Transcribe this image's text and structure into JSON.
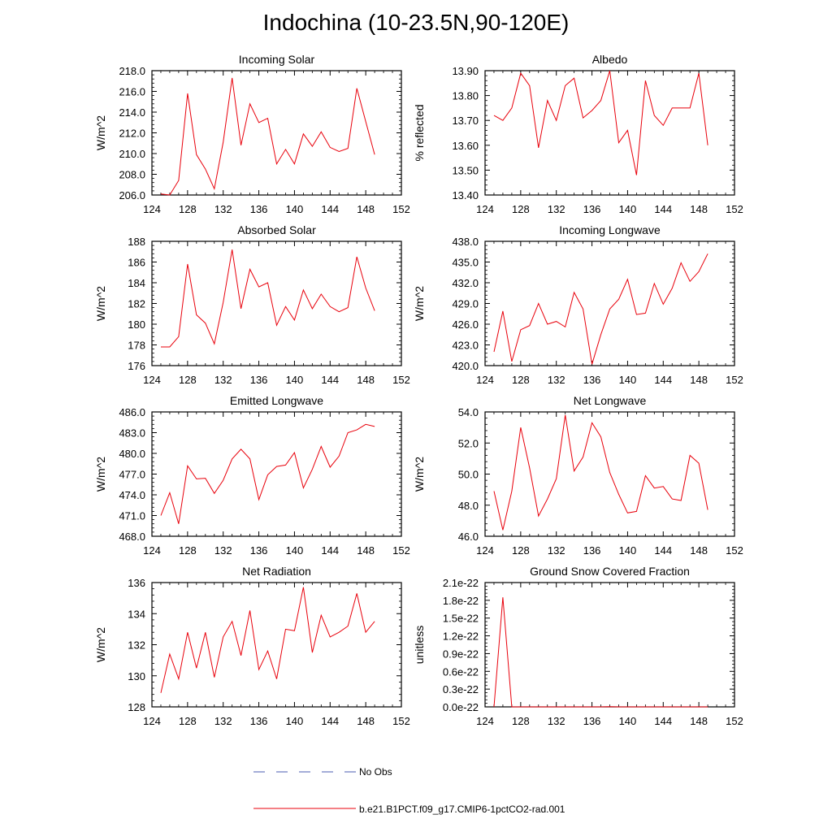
{
  "title": "Indochina (10-23.5N,90-120E)",
  "legend": {
    "no_obs_label": "No Obs",
    "model_label": "b.e21.B1PCT.f09_g17.CMIP6-1pctCO2-rad.001",
    "no_obs_color": "#4a5bb0",
    "model_color": "#e8000b"
  },
  "colors": {
    "line": "#e8000b",
    "axis": "#000000"
  },
  "chart_data": [
    {
      "type": "line",
      "title": "Incoming Solar",
      "ylabel": "W/m^2",
      "xlim": [
        124,
        152
      ],
      "ylim": [
        206,
        218
      ],
      "xticks": [
        "124",
        "128",
        "132",
        "136",
        "140",
        "144",
        "148",
        "152"
      ],
      "yticks": [
        "206.0",
        "208.0",
        "210.0",
        "212.0",
        "214.0",
        "216.0",
        "218.0"
      ],
      "x": [
        125,
        126,
        127,
        128,
        129,
        130,
        131,
        132,
        133,
        134,
        135,
        136,
        137,
        138,
        139,
        140,
        141,
        142,
        143,
        144,
        145,
        146,
        147,
        148,
        149
      ],
      "y": [
        206.1,
        206.0,
        207.4,
        215.8,
        209.9,
        208.5,
        206.6,
        211.1,
        217.3,
        210.8,
        214.8,
        213.0,
        213.4,
        209.0,
        210.4,
        209.0,
        211.9,
        210.7,
        212.1,
        210.6,
        210.2,
        210.5,
        216.3,
        213.1,
        209.9
      ]
    },
    {
      "type": "line",
      "title": "Albedo",
      "ylabel": "% reflected",
      "xlim": [
        124,
        152
      ],
      "ylim": [
        13.4,
        13.9
      ],
      "xticks": [
        "124",
        "128",
        "132",
        "136",
        "140",
        "144",
        "148",
        "152"
      ],
      "yticks": [
        "13.40",
        "13.50",
        "13.60",
        "13.70",
        "13.80",
        "13.90"
      ],
      "x": [
        125,
        126,
        127,
        128,
        129,
        130,
        131,
        132,
        133,
        134,
        135,
        136,
        137,
        138,
        139,
        140,
        141,
        142,
        143,
        144,
        145,
        146,
        147,
        148,
        149
      ],
      "y": [
        13.72,
        13.7,
        13.75,
        13.89,
        13.84,
        13.59,
        13.78,
        13.7,
        13.84,
        13.87,
        13.71,
        13.74,
        13.78,
        13.9,
        13.61,
        13.66,
        13.48,
        13.86,
        13.72,
        13.68,
        13.75,
        13.75,
        13.75,
        13.89,
        13.6
      ]
    },
    {
      "type": "line",
      "title": "Absorbed Solar",
      "ylabel": "W/m^2",
      "xlim": [
        124,
        152
      ],
      "ylim": [
        176,
        188
      ],
      "xticks": [
        "124",
        "128",
        "132",
        "136",
        "140",
        "144",
        "148",
        "152"
      ],
      "yticks": [
        "176",
        "178",
        "180",
        "182",
        "184",
        "186",
        "188"
      ],
      "x": [
        125,
        126,
        127,
        128,
        129,
        130,
        131,
        132,
        133,
        134,
        135,
        136,
        137,
        138,
        139,
        140,
        141,
        142,
        143,
        144,
        145,
        146,
        147,
        148,
        149
      ],
      "y": [
        177.8,
        177.8,
        178.8,
        185.8,
        180.9,
        180.1,
        178.1,
        182.1,
        187.2,
        181.5,
        185.3,
        183.6,
        184.0,
        179.9,
        181.7,
        180.4,
        183.3,
        181.5,
        182.9,
        181.7,
        181.2,
        181.6,
        186.5,
        183.5,
        181.3
      ]
    },
    {
      "type": "line",
      "title": "Incoming Longwave",
      "ylabel": "W/m^2",
      "xlim": [
        124,
        152
      ],
      "ylim": [
        420,
        438
      ],
      "xticks": [
        "124",
        "128",
        "132",
        "136",
        "140",
        "144",
        "148",
        "152"
      ],
      "yticks": [
        "420.0",
        "423.0",
        "426.0",
        "429.0",
        "432.0",
        "435.0",
        "438.0"
      ],
      "x": [
        125,
        126,
        127,
        128,
        129,
        130,
        131,
        132,
        133,
        134,
        135,
        136,
        137,
        138,
        139,
        140,
        141,
        142,
        143,
        144,
        145,
        146,
        147,
        148,
        149
      ],
      "y": [
        422.0,
        427.9,
        420.6,
        425.2,
        425.8,
        429.0,
        426.0,
        426.4,
        425.6,
        430.6,
        428.2,
        420.2,
        424.5,
        428.2,
        429.6,
        432.5,
        427.4,
        427.6,
        431.9,
        428.9,
        431.2,
        434.9,
        432.2,
        433.6,
        436.2
      ]
    },
    {
      "type": "line",
      "title": "Emitted Longwave",
      "ylabel": "W/m^2",
      "xlim": [
        124,
        152
      ],
      "ylim": [
        468,
        486
      ],
      "xticks": [
        "124",
        "128",
        "132",
        "136",
        "140",
        "144",
        "148",
        "152"
      ],
      "yticks": [
        "468.0",
        "471.0",
        "474.0",
        "477.0",
        "480.0",
        "483.0",
        "486.0"
      ],
      "x": [
        125,
        126,
        127,
        128,
        129,
        130,
        131,
        132,
        133,
        134,
        135,
        136,
        137,
        138,
        139,
        140,
        141,
        142,
        143,
        144,
        145,
        146,
        147,
        148,
        149
      ],
      "y": [
        471.0,
        474.3,
        469.8,
        478.2,
        476.3,
        476.4,
        474.2,
        476.1,
        479.2,
        480.6,
        479.2,
        473.3,
        476.9,
        478.1,
        478.3,
        480.1,
        475.0,
        477.7,
        481.0,
        478.0,
        479.6,
        483.0,
        483.4,
        484.2,
        483.9
      ]
    },
    {
      "type": "line",
      "title": "Net Longwave",
      "ylabel": "W/m^2",
      "xlim": [
        124,
        152
      ],
      "ylim": [
        46,
        54
      ],
      "xticks": [
        "124",
        "128",
        "132",
        "136",
        "140",
        "144",
        "148",
        "152"
      ],
      "yticks": [
        "46.0",
        "48.0",
        "50.0",
        "52.0",
        "54.0"
      ],
      "x": [
        125,
        126,
        127,
        128,
        129,
        130,
        131,
        132,
        133,
        134,
        135,
        136,
        137,
        138,
        139,
        140,
        141,
        142,
        143,
        144,
        145,
        146,
        147,
        148,
        149
      ],
      "y": [
        48.9,
        46.4,
        48.9,
        53.0,
        50.4,
        47.3,
        48.4,
        49.7,
        53.8,
        50.2,
        51.1,
        53.3,
        52.4,
        50.1,
        48.7,
        47.5,
        47.6,
        49.9,
        49.1,
        49.2,
        48.4,
        48.3,
        51.2,
        50.7,
        47.7
      ]
    },
    {
      "type": "line",
      "title": "Net Radiation",
      "ylabel": "W/m^2",
      "xlim": [
        124,
        152
      ],
      "ylim": [
        128,
        136
      ],
      "xticks": [
        "124",
        "128",
        "132",
        "136",
        "140",
        "144",
        "148",
        "152"
      ],
      "yticks": [
        "128",
        "130",
        "132",
        "134",
        "136"
      ],
      "x": [
        125,
        126,
        127,
        128,
        129,
        130,
        131,
        132,
        133,
        134,
        135,
        136,
        137,
        138,
        139,
        140,
        141,
        142,
        143,
        144,
        145,
        146,
        147,
        148,
        149
      ],
      "y": [
        128.9,
        131.4,
        129.8,
        132.8,
        130.5,
        132.8,
        129.9,
        132.5,
        133.5,
        131.3,
        134.2,
        130.4,
        131.6,
        129.8,
        133.0,
        132.9,
        135.7,
        131.5,
        133.9,
        132.5,
        132.8,
        133.2,
        135.3,
        132.8,
        133.5
      ]
    },
    {
      "type": "line",
      "title": "Ground Snow Covered Fraction",
      "ylabel": "unitless",
      "xlim": [
        124,
        152
      ],
      "ylim": [
        0,
        2.1e-22
      ],
      "xticks": [
        "124",
        "128",
        "132",
        "136",
        "140",
        "144",
        "148",
        "152"
      ],
      "yticks": [
        "0.0e-22",
        "0.3e-22",
        "0.6e-22",
        "0.9e-22",
        "1.2e-22",
        "1.5e-22",
        "1.8e-22",
        "2.1e-22"
      ],
      "x": [
        125,
        126,
        127,
        128,
        129,
        130,
        131,
        132,
        133,
        134,
        135,
        136,
        137,
        138,
        139,
        140,
        141,
        142,
        143,
        144,
        145,
        146,
        147,
        148,
        149
      ],
      "y": [
        0,
        1.85e-22,
        0,
        0,
        0,
        0,
        0,
        0,
        0,
        0,
        0,
        0,
        0,
        3e-25,
        0,
        0,
        0,
        0,
        0,
        0,
        0,
        0,
        0,
        0,
        0
      ]
    }
  ]
}
